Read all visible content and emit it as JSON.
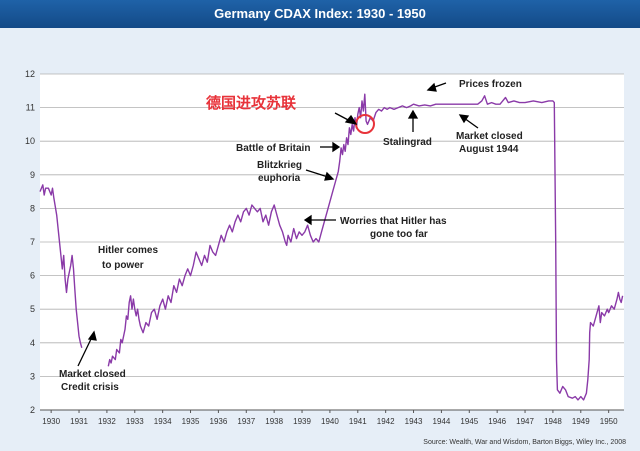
{
  "header": {
    "title": "Germany CDAX Index: 1930 - 1950"
  },
  "source": "Source: Wealth, War and Wisdom, Barton Biggs, Wiley Inc., 2008",
  "colors": {
    "banner": "#1a5699",
    "plot_bg": "#ffffff",
    "outer_bg": "#e6eef7",
    "line": "#8a3aa8",
    "grid": "#b0b0b0",
    "marker": "#e8333a"
  },
  "chart_data": {
    "type": "line",
    "title": "Germany CDAX Index: 1930 - 1950",
    "xlabel": "",
    "ylabel": "",
    "xlim": [
      1929.6,
      1950.55
    ],
    "ylim": [
      2,
      12
    ],
    "grid": "horizontal",
    "x_ticks": [
      "1930",
      "1931",
      "1932",
      "1933",
      "1934",
      "1935",
      "1936",
      "1937",
      "1938",
      "1939",
      "1940",
      "1941",
      "1942",
      "1943",
      "1944",
      "1945",
      "1946",
      "1947",
      "1948",
      "1949",
      "1950"
    ],
    "y_ticks": [
      2,
      3,
      4,
      5,
      6,
      7,
      8,
      9,
      10,
      11,
      12
    ],
    "series": [
      {
        "points": [
          [
            1929.6,
            8.5
          ],
          [
            1929.7,
            8.7
          ],
          [
            1929.75,
            8.4
          ],
          [
            1929.8,
            8.6
          ],
          [
            1929.9,
            8.6
          ],
          [
            1930.0,
            8.4
          ],
          [
            1930.05,
            8.6
          ],
          [
            1930.1,
            8.3
          ],
          [
            1930.2,
            7.8
          ],
          [
            1930.25,
            7.4
          ],
          [
            1930.3,
            7.0
          ],
          [
            1930.35,
            6.6
          ],
          [
            1930.4,
            6.2
          ],
          [
            1930.45,
            6.6
          ],
          [
            1930.5,
            5.9
          ],
          [
            1930.55,
            5.5
          ],
          [
            1930.6,
            5.9
          ],
          [
            1930.7,
            6.3
          ],
          [
            1930.75,
            6.6
          ],
          [
            1930.8,
            6.2
          ],
          [
            1930.85,
            5.6
          ],
          [
            1930.9,
            5.0
          ],
          [
            1930.95,
            4.6
          ],
          [
            1931.0,
            4.2
          ],
          [
            1931.05,
            4.0
          ],
          [
            1931.1,
            3.85
          ],
          [
            1932.05,
            3.3
          ],
          [
            1932.1,
            3.5
          ],
          [
            1932.15,
            3.4
          ],
          [
            1932.2,
            3.6
          ],
          [
            1932.3,
            3.5
          ],
          [
            1932.35,
            3.8
          ],
          [
            1932.45,
            3.7
          ],
          [
            1932.5,
            4.1
          ],
          [
            1932.55,
            4.0
          ],
          [
            1932.65,
            4.4
          ],
          [
            1932.7,
            4.8
          ],
          [
            1932.75,
            4.7
          ],
          [
            1932.8,
            5.2
          ],
          [
            1932.85,
            5.4
          ],
          [
            1932.9,
            5.0
          ],
          [
            1932.95,
            5.3
          ],
          [
            1933.0,
            5.0
          ],
          [
            1933.05,
            4.8
          ],
          [
            1933.1,
            5.0
          ],
          [
            1933.15,
            4.7
          ],
          [
            1933.2,
            4.5
          ],
          [
            1933.3,
            4.3
          ],
          [
            1933.4,
            4.6
          ],
          [
            1933.5,
            4.5
          ],
          [
            1933.6,
            4.9
          ],
          [
            1933.7,
            5.0
          ],
          [
            1933.8,
            4.7
          ],
          [
            1933.9,
            5.1
          ],
          [
            1934.0,
            5.3
          ],
          [
            1934.1,
            5.0
          ],
          [
            1934.2,
            5.4
          ],
          [
            1934.3,
            5.2
          ],
          [
            1934.4,
            5.7
          ],
          [
            1934.5,
            5.5
          ],
          [
            1934.6,
            5.9
          ],
          [
            1934.7,
            5.7
          ],
          [
            1934.8,
            6.0
          ],
          [
            1934.9,
            6.2
          ],
          [
            1935.0,
            6.0
          ],
          [
            1935.1,
            6.3
          ],
          [
            1935.2,
            6.7
          ],
          [
            1935.3,
            6.5
          ],
          [
            1935.4,
            6.3
          ],
          [
            1935.5,
            6.6
          ],
          [
            1935.6,
            6.4
          ],
          [
            1935.7,
            6.9
          ],
          [
            1935.8,
            6.7
          ],
          [
            1935.9,
            6.6
          ],
          [
            1936.0,
            6.9
          ],
          [
            1936.1,
            7.2
          ],
          [
            1936.2,
            7.0
          ],
          [
            1936.3,
            7.3
          ],
          [
            1936.4,
            7.5
          ],
          [
            1936.5,
            7.3
          ],
          [
            1936.6,
            7.6
          ],
          [
            1936.7,
            7.8
          ],
          [
            1936.8,
            7.6
          ],
          [
            1936.9,
            7.9
          ],
          [
            1937.0,
            8.0
          ],
          [
            1937.1,
            7.8
          ],
          [
            1937.2,
            8.1
          ],
          [
            1937.3,
            8.0
          ],
          [
            1937.4,
            7.9
          ],
          [
            1937.5,
            8.0
          ],
          [
            1937.6,
            7.6
          ],
          [
            1937.7,
            7.8
          ],
          [
            1937.8,
            7.5
          ],
          [
            1937.9,
            7.9
          ],
          [
            1938.0,
            8.1
          ],
          [
            1938.1,
            7.8
          ],
          [
            1938.2,
            7.5
          ],
          [
            1938.3,
            7.3
          ],
          [
            1938.4,
            7.0
          ],
          [
            1938.45,
            6.9
          ],
          [
            1938.5,
            7.2
          ],
          [
            1938.6,
            7.0
          ],
          [
            1938.7,
            7.4
          ],
          [
            1938.8,
            7.1
          ],
          [
            1938.9,
            7.3
          ],
          [
            1939.0,
            7.2
          ],
          [
            1939.1,
            7.3
          ],
          [
            1939.2,
            7.5
          ],
          [
            1939.3,
            7.2
          ],
          [
            1939.4,
            7.0
          ],
          [
            1939.5,
            7.1
          ],
          [
            1939.6,
            7.0
          ],
          [
            1939.7,
            7.3
          ],
          [
            1939.8,
            7.6
          ],
          [
            1939.9,
            7.9
          ],
          [
            1940.0,
            8.2
          ],
          [
            1940.1,
            8.5
          ],
          [
            1940.2,
            8.8
          ],
          [
            1940.3,
            9.1
          ],
          [
            1940.35,
            9.4
          ],
          [
            1940.4,
            9.8
          ],
          [
            1940.45,
            9.6
          ],
          [
            1940.5,
            9.9
          ],
          [
            1940.55,
            9.7
          ],
          [
            1940.6,
            10.1
          ],
          [
            1940.65,
            9.9
          ],
          [
            1940.7,
            10.4
          ],
          [
            1940.75,
            10.2
          ],
          [
            1940.8,
            10.5
          ],
          [
            1940.85,
            10.3
          ],
          [
            1940.9,
            10.7
          ],
          [
            1940.95,
            10.4
          ],
          [
            1941.0,
            10.8
          ],
          [
            1941.05,
            11.0
          ],
          [
            1941.1,
            10.7
          ],
          [
            1941.15,
            11.2
          ],
          [
            1941.2,
            10.9
          ],
          [
            1941.25,
            11.4
          ],
          [
            1941.3,
            10.6
          ],
          [
            1941.35,
            10.5
          ],
          [
            1941.45,
            10.7
          ],
          [
            1941.55,
            10.6
          ],
          [
            1941.65,
            10.85
          ],
          [
            1941.75,
            10.95
          ],
          [
            1941.85,
            10.9
          ],
          [
            1941.95,
            11.0
          ],
          [
            1942.05,
            10.95
          ],
          [
            1942.15,
            11.0
          ],
          [
            1942.3,
            10.95
          ],
          [
            1942.45,
            11.0
          ],
          [
            1942.6,
            11.05
          ],
          [
            1942.75,
            11.0
          ],
          [
            1942.9,
            11.05
          ],
          [
            1943.0,
            11.1
          ],
          [
            1943.2,
            11.05
          ],
          [
            1943.4,
            11.08
          ],
          [
            1943.6,
            11.05
          ],
          [
            1943.8,
            11.1
          ],
          [
            1944.0,
            11.1
          ],
          [
            1944.5,
            11.1
          ],
          [
            1945.0,
            11.1
          ],
          [
            1945.3,
            11.1
          ],
          [
            1945.45,
            11.2
          ],
          [
            1945.55,
            11.35
          ],
          [
            1945.65,
            11.1
          ],
          [
            1945.8,
            11.15
          ],
          [
            1945.95,
            11.1
          ],
          [
            1946.1,
            11.1
          ],
          [
            1946.2,
            11.2
          ],
          [
            1946.3,
            11.3
          ],
          [
            1946.4,
            11.15
          ],
          [
            1946.6,
            11.2
          ],
          [
            1946.8,
            11.15
          ],
          [
            1947.0,
            11.15
          ],
          [
            1947.3,
            11.2
          ],
          [
            1947.6,
            11.15
          ],
          [
            1947.85,
            11.2
          ],
          [
            1948.0,
            11.2
          ],
          [
            1948.05,
            11.15
          ],
          [
            1948.1,
            7.0
          ],
          [
            1948.13,
            3.5
          ],
          [
            1948.16,
            2.6
          ],
          [
            1948.25,
            2.5
          ],
          [
            1948.35,
            2.7
          ],
          [
            1948.45,
            2.6
          ],
          [
            1948.55,
            2.4
          ],
          [
            1948.7,
            2.35
          ],
          [
            1948.8,
            2.4
          ],
          [
            1948.9,
            2.3
          ],
          [
            1949.0,
            2.4
          ],
          [
            1949.1,
            2.3
          ],
          [
            1949.2,
            2.5
          ],
          [
            1949.25,
            2.9
          ],
          [
            1949.3,
            3.5
          ],
          [
            1949.32,
            4.3
          ],
          [
            1949.35,
            4.6
          ],
          [
            1949.45,
            4.5
          ],
          [
            1949.55,
            4.8
          ],
          [
            1949.65,
            5.1
          ],
          [
            1949.7,
            4.6
          ],
          [
            1949.75,
            4.9
          ],
          [
            1949.85,
            4.8
          ],
          [
            1949.95,
            5.0
          ],
          [
            1950.0,
            4.9
          ],
          [
            1950.1,
            5.1
          ],
          [
            1950.2,
            5.0
          ],
          [
            1950.3,
            5.3
          ],
          [
            1950.35,
            5.5
          ],
          [
            1950.4,
            5.3
          ],
          [
            1950.45,
            5.2
          ],
          [
            1950.5,
            5.4
          ]
        ]
      }
    ],
    "annotations": {
      "chinese_label": "德国进攻苏联",
      "prices_frozen": "Prices frozen",
      "stalingrad": "Stalingrad",
      "battle_of_britain": "Battle of Britain",
      "blitzkrieg_1": "Blitzkrieg",
      "blitzkrieg_2": "euphoria",
      "market_closed_1944_1": "Market closed",
      "market_closed_1944_2": "August 1944",
      "worries_1": "Worries that Hitler has",
      "worries_2": "gone too far",
      "hitler_1": "Hitler comes",
      "hitler_2": "to power",
      "market_closed_1931_1": "Market closed",
      "market_closed_1931_2": "Credit crisis"
    }
  }
}
